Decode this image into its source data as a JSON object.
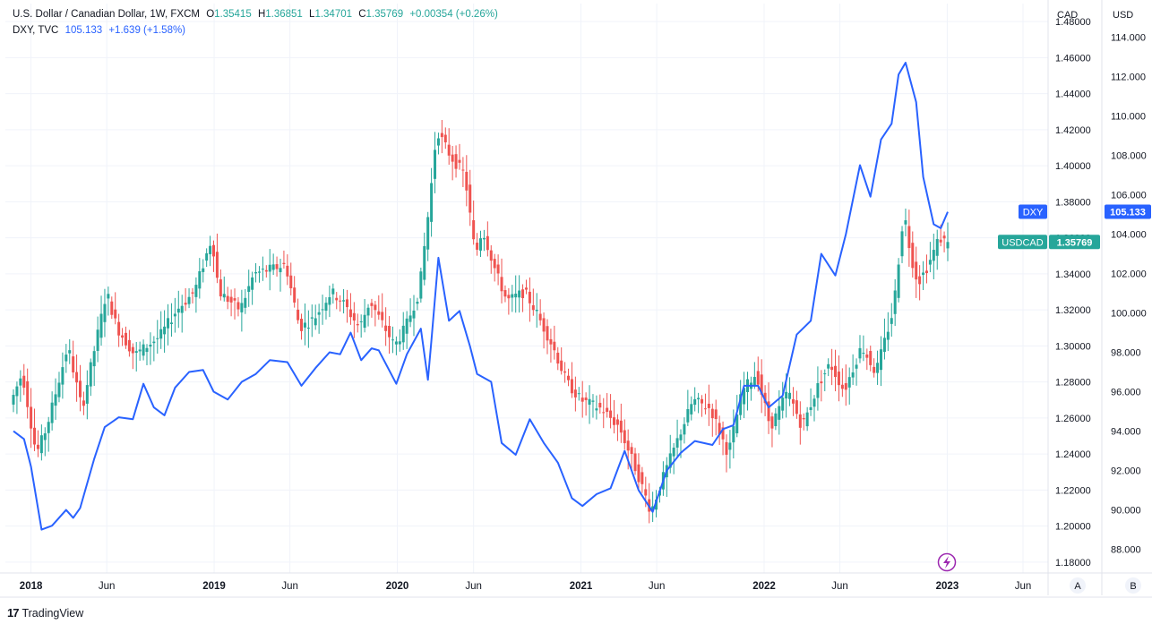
{
  "legend": {
    "usdcad": {
      "name": "U.S. Dollar / Canadian Dollar, 1W, FXCM",
      "o_label": "O",
      "o": "1.35415",
      "h_label": "H",
      "h": "1.36851",
      "l_label": "L",
      "l": "1.34701",
      "c_label": "C",
      "c": "1.35769",
      "change": "+0.00354 (+0.26%)"
    },
    "dxy": {
      "name": "DXY, TVC",
      "value": "105.133",
      "change": "+1.639 (+1.58%)"
    }
  },
  "axis_headers": {
    "left": "CAD",
    "right": "USD"
  },
  "scale_buttons": {
    "a": "A",
    "b": "B"
  },
  "brand": "TradingView",
  "colors": {
    "up": "#26a69a",
    "down": "#ef5350",
    "dxy": "#2962ff",
    "usdcad_label": "#26a69a",
    "dxy_label": "#2962ff"
  },
  "chart_data": {
    "type": "line",
    "x_ticks": [
      "2018",
      "Jun",
      "2019",
      "Jun",
      "2020",
      "Jun",
      "2021",
      "Jun",
      "2022",
      "Jun",
      "2023",
      "Jun"
    ],
    "x_tick_dates": [
      "2018-01-01",
      "2018-06-01",
      "2019-01-01",
      "2019-06-01",
      "2020-01-01",
      "2020-06-01",
      "2021-01-01",
      "2021-06-01",
      "2022-01-01",
      "2022-06-01",
      "2023-01-01",
      "2023-06-01"
    ],
    "y_left": {
      "label": "CAD",
      "ticks": [
        "1.18000",
        "1.20000",
        "1.22000",
        "1.24000",
        "1.26000",
        "1.28000",
        "1.30000",
        "1.32000",
        "1.34000",
        "1.36000",
        "1.38000",
        "1.40000",
        "1.42000",
        "1.44000",
        "1.46000",
        "1.48000"
      ],
      "range": [
        1.174,
        1.49
      ]
    },
    "y_right": {
      "label": "USD",
      "ticks": [
        "88.000",
        "90.000",
        "92.000",
        "94.000",
        "96.000",
        "98.000",
        "100.000",
        "102.000",
        "104.000",
        "106.000",
        "108.000",
        "110.000",
        "112.000",
        "114.000"
      ],
      "range": [
        86.8,
        115.7
      ]
    },
    "grid": true,
    "series": [
      {
        "name": "USDCAD",
        "kind": "candlestick-weekly",
        "axis": "left",
        "last_label": "USDCAD",
        "last_value": "1.35769",
        "path": [
          [
            "2017-11-27",
            1.27
          ],
          [
            "2017-12-18",
            1.285
          ],
          [
            "2018-01-15",
            1.24
          ],
          [
            "2018-02-05",
            1.255
          ],
          [
            "2018-03-19",
            1.3
          ],
          [
            "2018-04-16",
            1.265
          ],
          [
            "2018-06-04",
            1.33
          ],
          [
            "2018-06-25",
            1.31
          ],
          [
            "2018-07-30",
            1.295
          ],
          [
            "2018-09-17",
            1.305
          ],
          [
            "2018-10-22",
            1.32
          ],
          [
            "2018-11-26",
            1.33
          ],
          [
            "2018-12-31",
            1.36
          ],
          [
            "2019-01-14",
            1.33
          ],
          [
            "2019-02-25",
            1.32
          ],
          [
            "2019-03-25",
            1.34
          ],
          [
            "2019-05-27",
            1.345
          ],
          [
            "2019-06-24",
            1.31
          ],
          [
            "2019-07-22",
            1.315
          ],
          [
            "2019-08-26",
            1.33
          ],
          [
            "2019-09-16",
            1.325
          ],
          [
            "2019-10-21",
            1.31
          ],
          [
            "2019-11-11",
            1.325
          ],
          [
            "2019-12-30",
            1.3
          ],
          [
            "2020-01-20",
            1.31
          ],
          [
            "2020-02-17",
            1.33
          ],
          [
            "2020-03-09",
            1.38
          ],
          [
            "2020-03-23",
            1.42
          ],
          [
            "2020-04-20",
            1.405
          ],
          [
            "2020-05-18",
            1.395
          ],
          [
            "2020-06-08",
            1.35
          ],
          [
            "2020-06-22",
            1.365
          ],
          [
            "2020-07-20",
            1.34
          ],
          [
            "2020-08-10",
            1.325
          ],
          [
            "2020-09-14",
            1.33
          ],
          [
            "2020-10-05",
            1.32
          ],
          [
            "2020-11-09",
            1.3
          ],
          [
            "2020-12-07",
            1.28
          ],
          [
            "2021-01-04",
            1.27
          ],
          [
            "2021-02-15",
            1.265
          ],
          [
            "2021-03-22",
            1.255
          ],
          [
            "2021-04-26",
            1.23
          ],
          [
            "2021-05-24",
            1.208
          ],
          [
            "2021-06-21",
            1.23
          ],
          [
            "2021-07-19",
            1.25
          ],
          [
            "2021-08-16",
            1.27
          ],
          [
            "2021-09-20",
            1.265
          ],
          [
            "2021-10-25",
            1.24
          ],
          [
            "2021-11-22",
            1.275
          ],
          [
            "2021-12-20",
            1.285
          ],
          [
            "2022-01-17",
            1.255
          ],
          [
            "2022-02-21",
            1.275
          ],
          [
            "2022-03-21",
            1.255
          ],
          [
            "2022-04-25",
            1.28
          ],
          [
            "2022-05-16",
            1.29
          ],
          [
            "2022-06-13",
            1.275
          ],
          [
            "2022-07-18",
            1.3
          ],
          [
            "2022-08-15",
            1.285
          ],
          [
            "2022-09-19",
            1.32
          ],
          [
            "2022-10-10",
            1.375
          ],
          [
            "2022-10-24",
            1.35
          ],
          [
            "2022-11-07",
            1.335
          ],
          [
            "2022-11-28",
            1.345
          ],
          [
            "2022-12-19",
            1.36
          ],
          [
            "2023-01-02",
            1.3577
          ]
        ]
      },
      {
        "name": "DXY",
        "kind": "line",
        "axis": "right",
        "last_label": "DXY",
        "last_value": "105.133",
        "points": [
          [
            "2017-11-27",
            94.0
          ],
          [
            "2017-12-18",
            93.6
          ],
          [
            "2018-01-01",
            92.2
          ],
          [
            "2018-01-22",
            89.0
          ],
          [
            "2018-02-12",
            89.2
          ],
          [
            "2018-03-12",
            90.0
          ],
          [
            "2018-03-26",
            89.6
          ],
          [
            "2018-04-09",
            90.1
          ],
          [
            "2018-05-07",
            92.6
          ],
          [
            "2018-05-28",
            94.2
          ],
          [
            "2018-06-25",
            94.7
          ],
          [
            "2018-07-23",
            94.6
          ],
          [
            "2018-08-13",
            96.4
          ],
          [
            "2018-09-03",
            95.2
          ],
          [
            "2018-09-24",
            94.8
          ],
          [
            "2018-10-15",
            96.2
          ],
          [
            "2018-11-12",
            97.0
          ],
          [
            "2018-12-10",
            97.1
          ],
          [
            "2018-12-31",
            96.0
          ],
          [
            "2019-01-28",
            95.6
          ],
          [
            "2019-02-25",
            96.5
          ],
          [
            "2019-03-25",
            96.9
          ],
          [
            "2019-04-22",
            97.6
          ],
          [
            "2019-05-27",
            97.5
          ],
          [
            "2019-06-24",
            96.3
          ],
          [
            "2019-07-22",
            97.2
          ],
          [
            "2019-08-19",
            98.0
          ],
          [
            "2019-09-09",
            97.9
          ],
          [
            "2019-09-30",
            99.0
          ],
          [
            "2019-10-21",
            97.6
          ],
          [
            "2019-11-11",
            98.2
          ],
          [
            "2019-11-25",
            98.1
          ],
          [
            "2019-12-30",
            96.4
          ],
          [
            "2020-01-20",
            97.9
          ],
          [
            "2020-02-17",
            99.2
          ],
          [
            "2020-03-02",
            96.6
          ],
          [
            "2020-03-09",
            98.6
          ],
          [
            "2020-03-23",
            102.8
          ],
          [
            "2020-04-13",
            99.6
          ],
          [
            "2020-05-04",
            100.1
          ],
          [
            "2020-05-25",
            98.3
          ],
          [
            "2020-06-08",
            96.9
          ],
          [
            "2020-07-06",
            96.5
          ],
          [
            "2020-07-27",
            93.4
          ],
          [
            "2020-08-24",
            92.8
          ],
          [
            "2020-09-21",
            94.6
          ],
          [
            "2020-10-19",
            93.4
          ],
          [
            "2020-11-16",
            92.4
          ],
          [
            "2020-12-14",
            90.6
          ],
          [
            "2021-01-04",
            90.2
          ],
          [
            "2021-02-01",
            90.8
          ],
          [
            "2021-03-01",
            91.1
          ],
          [
            "2021-03-29",
            93.0
          ],
          [
            "2021-04-26",
            91.0
          ],
          [
            "2021-05-24",
            89.9
          ],
          [
            "2021-06-21",
            92.0
          ],
          [
            "2021-07-19",
            92.9
          ],
          [
            "2021-08-16",
            93.5
          ],
          [
            "2021-09-20",
            93.3
          ],
          [
            "2021-10-11",
            94.1
          ],
          [
            "2021-11-01",
            94.3
          ],
          [
            "2021-11-22",
            96.3
          ],
          [
            "2021-12-20",
            96.3
          ],
          [
            "2022-01-10",
            95.2
          ],
          [
            "2022-02-07",
            95.8
          ],
          [
            "2022-03-07",
            98.9
          ],
          [
            "2022-04-04",
            99.6
          ],
          [
            "2022-04-25",
            103.0
          ],
          [
            "2022-05-23",
            101.9
          ],
          [
            "2022-06-13",
            104.0
          ],
          [
            "2022-07-11",
            107.5
          ],
          [
            "2022-08-01",
            105.9
          ],
          [
            "2022-08-22",
            108.8
          ],
          [
            "2022-09-12",
            109.6
          ],
          [
            "2022-09-26",
            112.1
          ],
          [
            "2022-10-10",
            112.7
          ],
          [
            "2022-10-31",
            110.7
          ],
          [
            "2022-11-14",
            106.9
          ],
          [
            "2022-12-05",
            104.5
          ],
          [
            "2022-12-19",
            104.3
          ],
          [
            "2023-01-02",
            105.13
          ]
        ]
      }
    ]
  }
}
